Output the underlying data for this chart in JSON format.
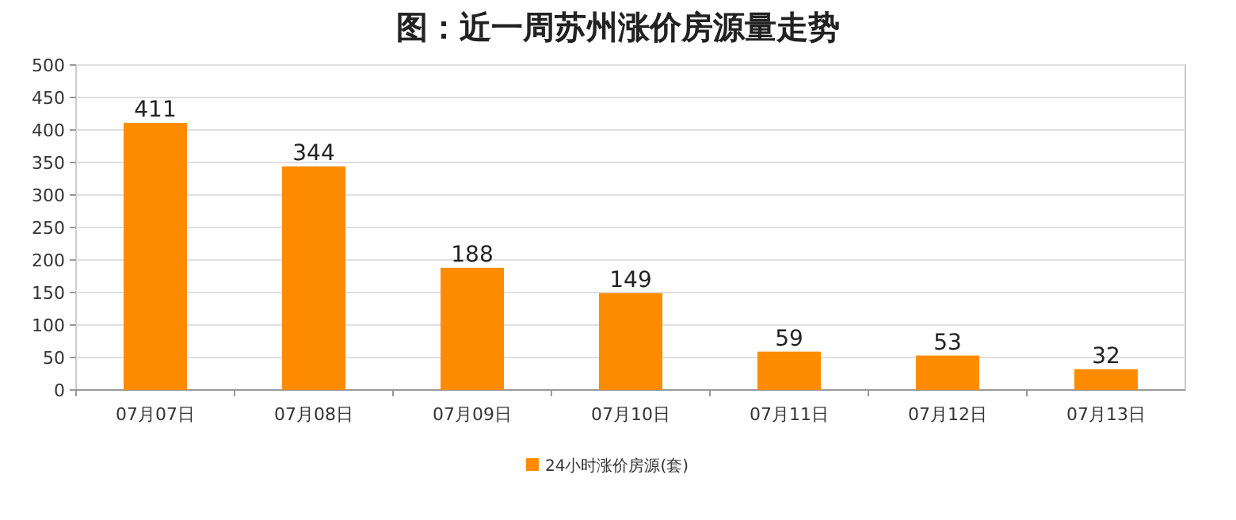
{
  "chart_data": {
    "type": "bar",
    "title": "图：近一周苏州涨价房源量走势",
    "categories": [
      "07月07日",
      "07月08日",
      "07月09日",
      "07月10日",
      "07月11日",
      "07月12日",
      "07月13日"
    ],
    "series": [
      {
        "name": "24小时涨价房源(套)",
        "color": "#ff8c00",
        "values": [
          411,
          344,
          188,
          149,
          59,
          53,
          32
        ]
      }
    ],
    "ylim": [
      0,
      500
    ],
    "yticks": [
      0,
      50,
      100,
      150,
      200,
      250,
      300,
      350,
      400,
      450,
      500
    ],
    "grid": "y",
    "legend": "bottom",
    "data_labels": true
  }
}
